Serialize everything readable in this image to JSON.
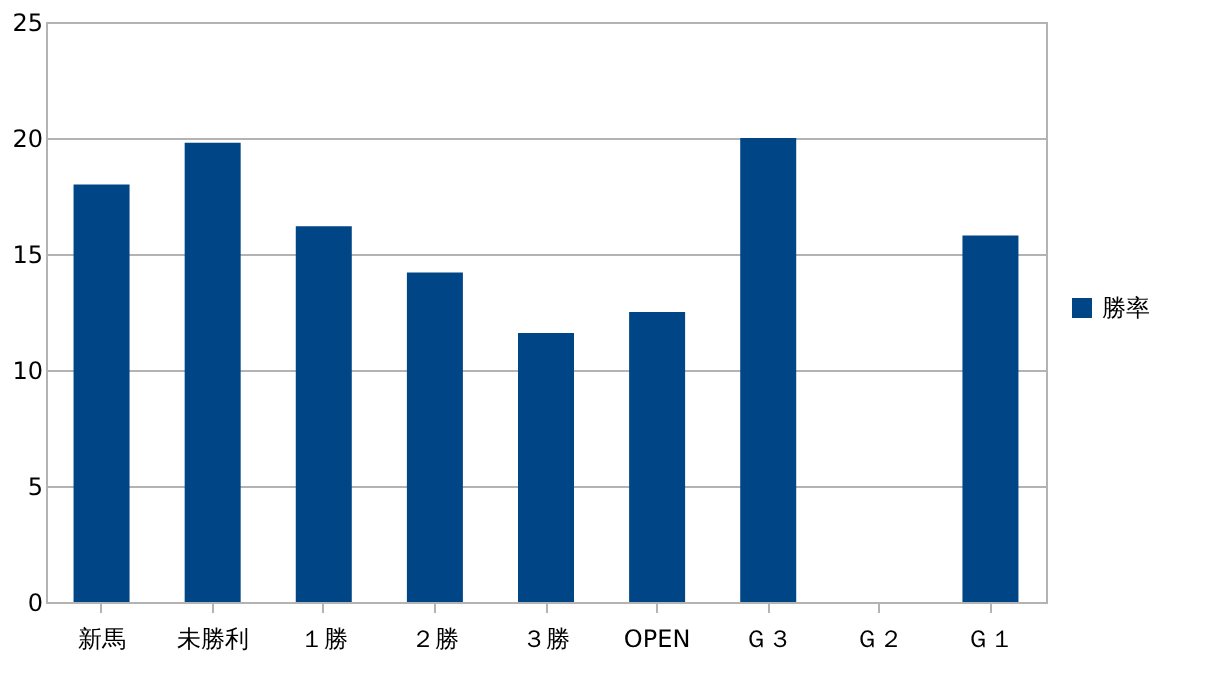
{
  "chart_data": {
    "type": "bar",
    "categories": [
      "新馬",
      "未勝利",
      "１勝",
      "２勝",
      "３勝",
      "OPEN",
      "Ｇ３",
      "Ｇ２",
      "Ｇ１"
    ],
    "series": [
      {
        "name": "勝率",
        "color": "#004586",
        "values": [
          18.0,
          19.8,
          16.2,
          14.2,
          11.6,
          12.5,
          20.0,
          0,
          15.8
        ]
      }
    ],
    "ylim": [
      0,
      25
    ],
    "yticks": [
      0,
      5,
      10,
      15,
      20,
      25
    ],
    "grid": "y",
    "legend": "right"
  }
}
